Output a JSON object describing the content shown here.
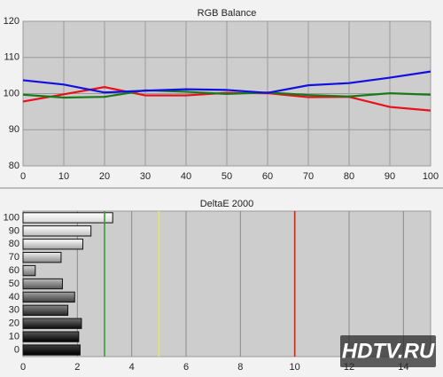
{
  "chart_data": [
    {
      "type": "line",
      "title": "RGB Balance",
      "x": [
        0,
        10,
        20,
        30,
        40,
        50,
        60,
        70,
        80,
        90,
        100
      ],
      "series": [
        {
          "name": "Red",
          "color": "#e8101a",
          "values": [
            97.8,
            99.8,
            101.8,
            99.5,
            99.5,
            100.2,
            100.1,
            99.0,
            99.1,
            96.3,
            95.3
          ]
        },
        {
          "name": "Green",
          "color": "#1a7a1a",
          "values": [
            99.7,
            98.9,
            99.1,
            100.9,
            100.5,
            99.9,
            100.3,
            99.6,
            99.2,
            100.1,
            99.7
          ]
        },
        {
          "name": "Blue",
          "color": "#1010e0",
          "values": [
            103.7,
            102.5,
            100.3,
            100.8,
            101.2,
            101.0,
            100.2,
            102.3,
            102.9,
            104.4,
            106.1
          ]
        }
      ],
      "xlim": [
        0,
        100
      ],
      "xticks": [
        0,
        10,
        20,
        30,
        40,
        50,
        60,
        70,
        80,
        90,
        100
      ],
      "ylim": [
        80,
        120
      ],
      "yticks": [
        80,
        90,
        100,
        110,
        120
      ],
      "grid": true
    },
    {
      "type": "hbar",
      "title": "DeltaE 2000",
      "categories": [
        "0",
        "10",
        "20",
        "30",
        "40",
        "50",
        "60",
        "70",
        "80",
        "90",
        "100"
      ],
      "values": [
        2.1,
        2.05,
        2.15,
        1.65,
        1.9,
        1.45,
        0.45,
        1.4,
        2.2,
        2.5,
        3.3
      ],
      "xlim": [
        0,
        15
      ],
      "xticks": [
        0,
        2,
        4,
        6,
        8,
        10,
        12,
        14
      ],
      "grid": true,
      "reference_lines": [
        {
          "value": 3,
          "color": "#3a9a3a"
        },
        {
          "value": 5,
          "color": "#e8e850"
        },
        {
          "value": 10,
          "color": "#c03020"
        }
      ]
    }
  ],
  "watermark": "HDTV.RU"
}
